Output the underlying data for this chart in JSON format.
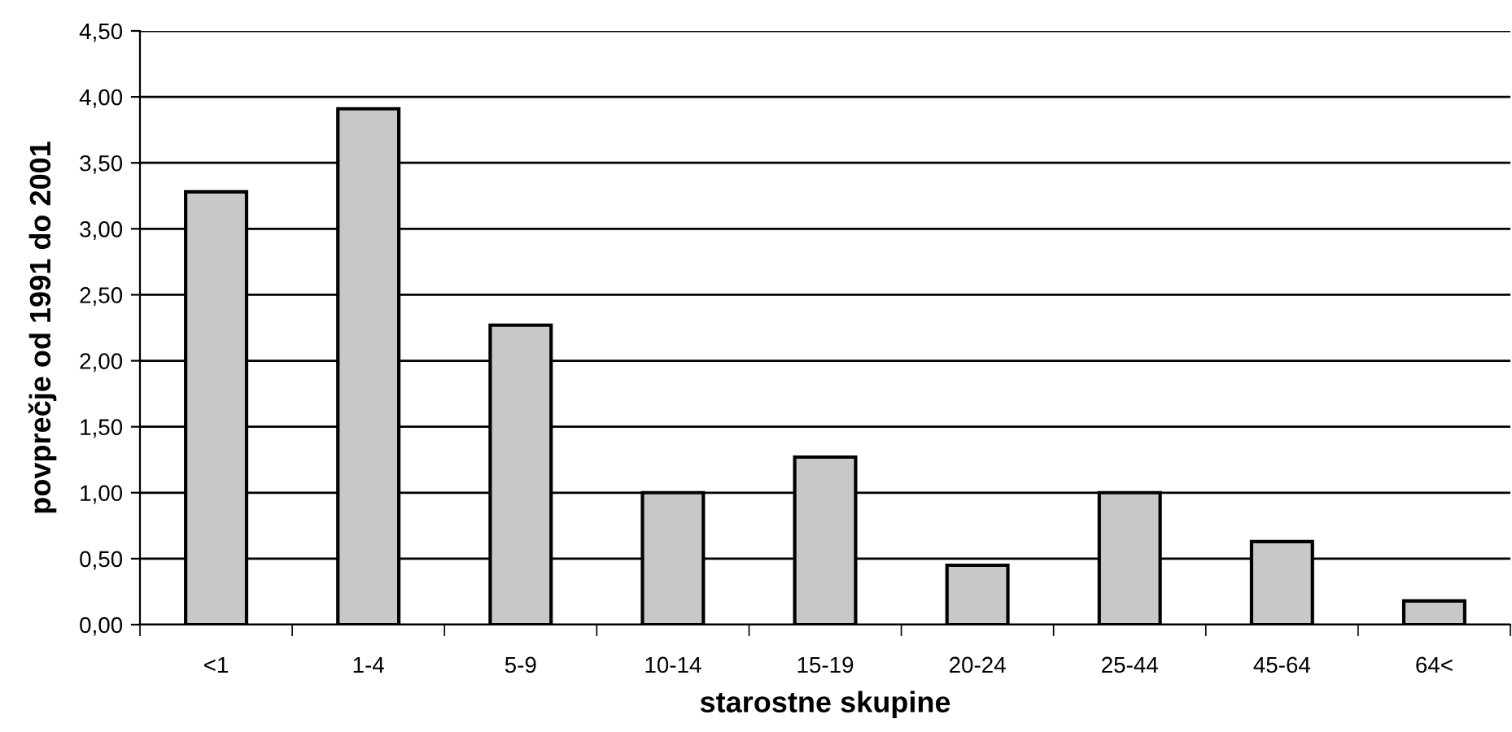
{
  "chart_data": {
    "type": "bar",
    "xlabel": "starostne skupine",
    "ylabel": "povprečje od 1991 do 2001",
    "categories": [
      "<1",
      "1-4",
      "5-9",
      "10-14",
      "15-19",
      "20-24",
      "25-44",
      "45-64",
      "64<"
    ],
    "values": [
      3.28,
      3.91,
      2.27,
      1.0,
      1.27,
      0.45,
      1.0,
      0.63,
      0.18
    ],
    "color": "#c8c8c8",
    "ylim": [
      0,
      4.5
    ],
    "yticks": [
      {
        "value": 0,
        "label": "0,00"
      },
      {
        "value": 0.5,
        "label": "0,50"
      },
      {
        "value": 1,
        "label": "1,00"
      },
      {
        "value": 1.5,
        "label": "1,50"
      },
      {
        "value": 2,
        "label": "2,00"
      },
      {
        "value": 2.5,
        "label": "2,50"
      },
      {
        "value": 3,
        "label": "3,00"
      },
      {
        "value": 3.5,
        "label": "3,50"
      },
      {
        "value": 4,
        "label": "4,00"
      },
      {
        "value": 4.5,
        "label": "4,50"
      }
    ],
    "grid": "y",
    "legend": false
  }
}
